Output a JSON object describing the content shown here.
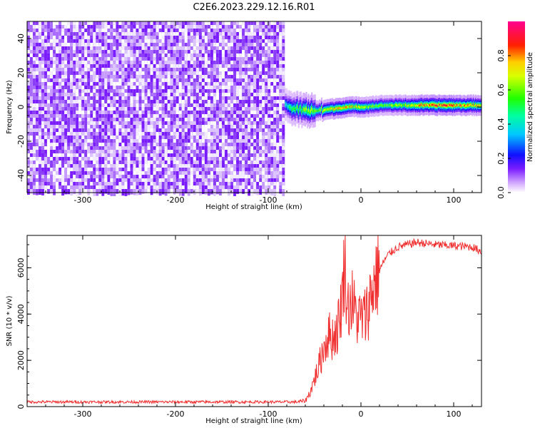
{
  "title": "C2E6.2023.229.12.16.R01",
  "colors": {
    "snr_line": "#f03030",
    "frame": "#000000"
  },
  "chart_data": [
    {
      "type": "heatmap",
      "name": "spectrogram",
      "xlabel": "Height of straight line (km)",
      "ylabel": "Frequency (Hz)",
      "xlim": [
        -360,
        130
      ],
      "ylim": [
        -50,
        50
      ],
      "x_ticks": [
        -300,
        -200,
        -100,
        0,
        100
      ],
      "x_tick_labels": [
        "-300",
        "-200",
        "-100",
        "0",
        "100"
      ],
      "y_ticks": [
        -40,
        -20,
        0,
        20,
        40
      ],
      "y_tick_labels": [
        "-40",
        "-20",
        "0",
        "20",
        "40"
      ],
      "noise_region_x": [
        -360,
        -82
      ],
      "signal_center_freq_hz": 0,
      "signal_track": {
        "x": [
          -82,
          -75,
          -60,
          -45,
          -30,
          -15,
          0,
          25,
          50,
          75,
          100,
          130
        ],
        "freq": [
          2,
          -1,
          -2,
          -2,
          -1,
          0,
          0,
          1,
          1,
          1,
          1,
          1
        ],
        "amplitude": [
          0.4,
          0.5,
          0.6,
          0.65,
          0.7,
          0.75,
          0.6,
          0.55,
          0.65,
          0.85,
          0.8,
          0.7
        ]
      },
      "colorbar": {
        "label": "Normalized spectral amplitude",
        "range": [
          0,
          1
        ],
        "ticks": [
          0,
          0.2,
          0.4,
          0.6,
          0.8
        ],
        "tick_labels": [
          "0.0",
          "0.2",
          "0.4",
          "0.6",
          "0.8"
        ],
        "colormap": "rainbow (white-violet-blue-cyan-green-yellow-red-magenta)"
      }
    },
    {
      "type": "line",
      "name": "snr",
      "xlabel": "Height of straight line (km)",
      "ylabel": "SNR (10 * v/v)",
      "xlim": [
        -360,
        130
      ],
      "ylim": [
        0,
        7400
      ],
      "x_ticks": [
        -300,
        -200,
        -100,
        0,
        100
      ],
      "x_tick_labels": [
        "-300",
        "-200",
        "-100",
        "0",
        "100"
      ],
      "y_ticks": [
        0,
        2000,
        4000,
        6000
      ],
      "y_tick_labels": [
        "0",
        "2000",
        "4000",
        "6000"
      ],
      "series": [
        {
          "x": [
            -360,
            -300,
            -200,
            -100,
            -70,
            -60,
            -55,
            -50,
            -45,
            -40,
            -35,
            -30,
            -25,
            -20,
            -17,
            -15,
            -10,
            -5,
            0,
            5,
            10,
            15,
            20,
            25,
            30,
            40,
            60,
            80,
            100,
            120,
            130
          ],
          "values": [
            200,
            200,
            200,
            200,
            200,
            250,
            600,
            1200,
            1800,
            2600,
            3100,
            3000,
            3400,
            4800,
            6900,
            4200,
            4600,
            3900,
            3800,
            3900,
            4700,
            5500,
            5900,
            6300,
            6600,
            6900,
            7100,
            7000,
            6950,
            6900,
            6700
          ]
        }
      ]
    }
  ]
}
